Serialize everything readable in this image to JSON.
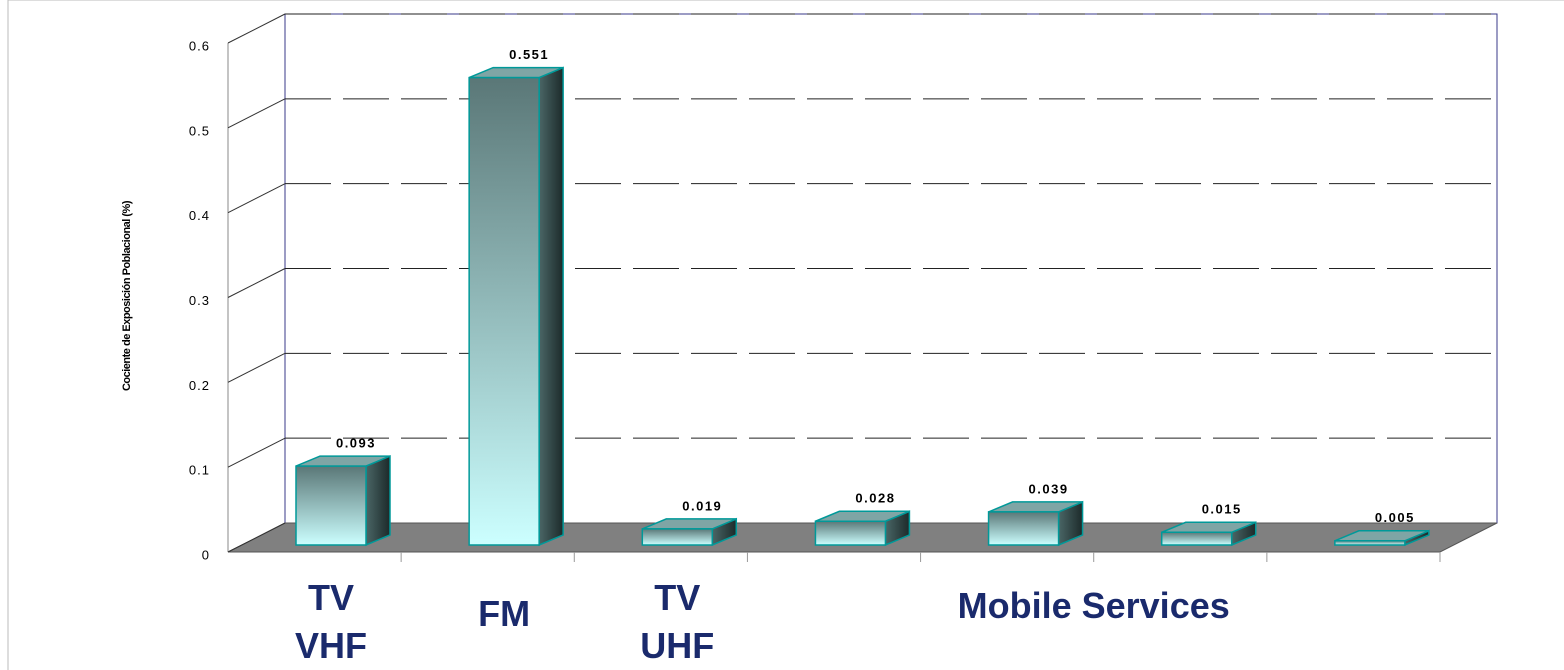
{
  "chart_data": {
    "type": "bar3d",
    "y_axis_label": "Cociente de Exposición Poblacional (%)",
    "categories": [
      "TV VHF",
      "FM",
      "TV UHF",
      null,
      null,
      null,
      null
    ],
    "values": [
      0.093,
      0.551,
      0.019,
      0.028,
      0.039,
      0.015,
      0.005
    ],
    "group_label": "Mobile Services",
    "color": "#ccffff",
    "edge_color": "#009999",
    "ylim": [
      0,
      0.6
    ],
    "yticks": [
      0,
      0.1,
      0.2,
      0.3,
      0.4,
      0.5,
      0.6
    ],
    "grid": true
  }
}
